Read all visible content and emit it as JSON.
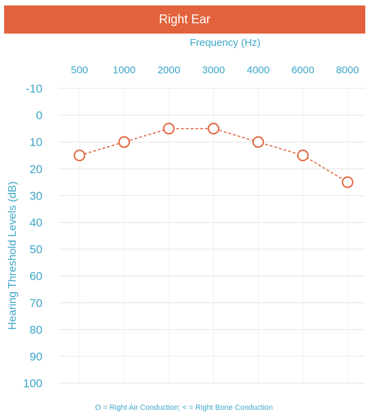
{
  "title": "Right Ear",
  "colors": {
    "banner": "#e2633b",
    "accent": "#3da6c8",
    "series": "#e2633b",
    "grid": "#e4e4e4"
  },
  "legend": "O = Right Air Conduction;  < = Right Bone Conduction",
  "chart_data": {
    "type": "line",
    "xlabel": "Frequency (Hz)",
    "ylabel": "Hearing Threshold Levels (dB)",
    "x": [
      "500",
      "1000",
      "2000",
      "3000",
      "4000",
      "6000",
      "8000"
    ],
    "yticks": [
      "-10",
      "0",
      "10",
      "20",
      "30",
      "40",
      "50",
      "60",
      "70",
      "80",
      "90",
      "100"
    ],
    "ylim": [
      -10,
      100
    ],
    "y_inverted": true,
    "grid": true,
    "series": [
      {
        "name": "Right Air Conduction",
        "marker": "circle",
        "line": "dashed",
        "values": [
          15,
          10,
          5,
          5,
          10,
          15,
          25
        ]
      }
    ]
  }
}
